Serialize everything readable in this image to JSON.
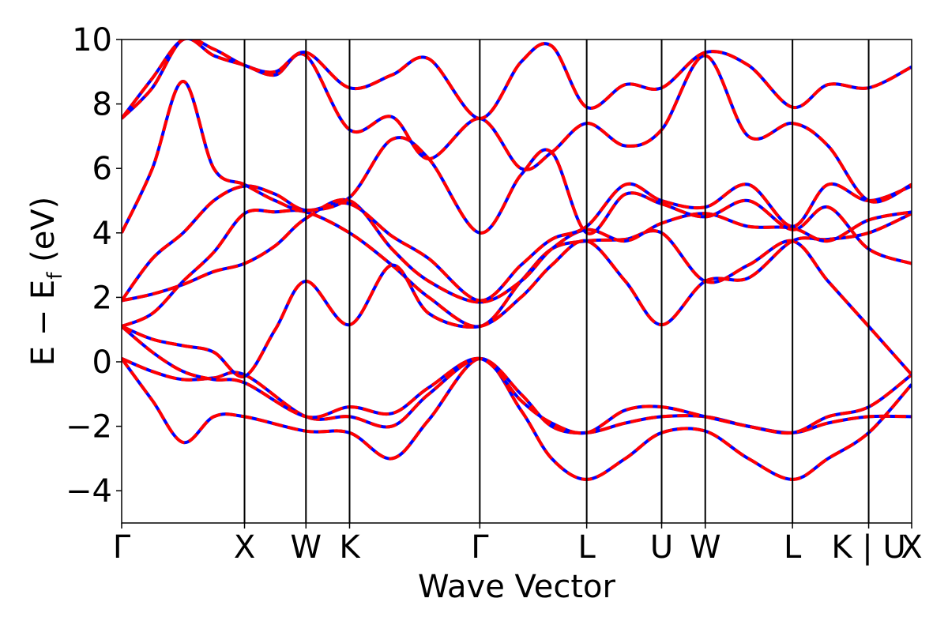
{
  "chart_data": {
    "type": "line",
    "xlabel": "Wave Vector",
    "ylabel_main": "E − E",
    "ylabel_sub": "f",
    "ylabel_unit": " (eV)",
    "ylim": [
      -5,
      10
    ],
    "xlim": [
      0,
      12.86
    ],
    "yticks": [
      -4,
      -2,
      0,
      2,
      4,
      6,
      8,
      10
    ],
    "ytick_labels": [
      "−4",
      "−2",
      "0",
      "2",
      "4",
      "6",
      "8",
      "10"
    ],
    "kpoints": [
      {
        "label": "Γ",
        "x": 0
      },
      {
        "label": "X",
        "x": 2.0
      },
      {
        "label": "W",
        "x": 3.0
      },
      {
        "label": "K",
        "x": 3.71
      },
      {
        "label": "Γ",
        "x": 5.83
      },
      {
        "label": "L",
        "x": 7.57
      },
      {
        "label": "U",
        "x": 8.79
      },
      {
        "label": "W",
        "x": 9.5
      },
      {
        "label": "L",
        "x": 10.92
      },
      {
        "label": "K | U",
        "x": 12.16
      },
      {
        "label": "X",
        "x": 12.86
      }
    ],
    "grid": false,
    "legend": "none",
    "colors": {
      "primary": "#0000ff",
      "overlay": "#ff0000",
      "axis": "#000000"
    },
    "series": [
      {
        "x": [
          0,
          0.5,
          1.0,
          1.5,
          2.0,
          3.0,
          3.71,
          4.4,
          5.0,
          5.83,
          6.5,
          7.0,
          7.57,
          8.2,
          8.79,
          9.5,
          10.2,
          10.92,
          11.5,
          12.16,
          12.86
        ],
        "values": [
          0.1,
          -1.2,
          -2.5,
          -1.7,
          -1.7,
          -2.15,
          -2.2,
          -3.0,
          -1.8,
          0.1,
          -1.5,
          -3.0,
          -3.65,
          -3.0,
          -2.2,
          -2.15,
          -3.0,
          -3.65,
          -3.0,
          -2.2,
          -0.7
        ]
      },
      {
        "x": [
          0,
          0.5,
          1.0,
          1.5,
          2.0,
          3.0,
          3.71,
          4.4,
          5.0,
          5.83,
          6.5,
          7.0,
          7.57,
          8.2,
          8.79,
          9.5,
          10.2,
          10.92,
          11.5,
          12.16,
          12.86
        ],
        "values": [
          0.1,
          -0.3,
          -0.55,
          -0.5,
          -0.4,
          -1.7,
          -1.7,
          -2.0,
          -1.0,
          0.1,
          -1.0,
          -2.0,
          -2.2,
          -1.9,
          -1.7,
          -1.7,
          -2.0,
          -2.2,
          -1.9,
          -1.7,
          -1.7
        ]
      },
      {
        "x": [
          0,
          0.5,
          1.0,
          1.5,
          2.0,
          3.0,
          3.71,
          4.4,
          5.0,
          5.83,
          6.5,
          7.0,
          7.57,
          8.2,
          8.79,
          9.5,
          10.2,
          10.92,
          11.5,
          12.16,
          12.86
        ],
        "values": [
          1.1,
          0.3,
          -0.3,
          -0.55,
          -0.65,
          -1.7,
          -1.4,
          -1.6,
          -0.8,
          0.1,
          -1.2,
          -1.9,
          -2.2,
          -1.5,
          -1.4,
          -1.7,
          -2.0,
          -2.2,
          -1.7,
          -1.4,
          -0.4
        ]
      },
      {
        "x": [
          0,
          0.5,
          1.0,
          1.5,
          2.0,
          2.5,
          3.0,
          3.71,
          4.4,
          5.0,
          5.83,
          6.5,
          7.0,
          7.57,
          8.2,
          8.79,
          9.5,
          10.2,
          10.92,
          11.5,
          12.16,
          12.86
        ],
        "values": [
          1.1,
          1.5,
          2.5,
          3.4,
          4.6,
          4.65,
          4.65,
          4.0,
          3.0,
          2.0,
          1.1,
          2.5,
          3.5,
          3.75,
          3.8,
          4.0,
          2.5,
          3.0,
          3.75,
          2.5,
          1.1,
          -0.4
        ]
      },
      {
        "x": [
          0,
          0.5,
          1.0,
          1.5,
          2.0,
          2.5,
          3.0,
          3.71,
          4.4,
          5.0,
          5.83,
          6.5,
          7.0,
          7.57,
          8.2,
          8.79,
          9.5,
          10.2,
          10.92,
          11.5,
          12.16,
          12.86
        ],
        "values": [
          1.1,
          0.7,
          0.5,
          0.3,
          -0.45,
          1.0,
          2.5,
          1.15,
          3.0,
          1.5,
          1.1,
          2.0,
          3.0,
          3.75,
          2.5,
          1.15,
          2.5,
          2.6,
          3.75,
          3.8,
          4.0,
          4.6
        ]
      },
      {
        "x": [
          0,
          0.5,
          1.0,
          1.5,
          2.0,
          2.5,
          3.0,
          3.71,
          4.4,
          5.0,
          5.83,
          6.5,
          7.0,
          7.57,
          8.2,
          8.79,
          9.5,
          10.2,
          10.92,
          11.5,
          12.16,
          12.86
        ],
        "values": [
          1.9,
          2.1,
          2.4,
          2.8,
          3.05,
          3.6,
          4.45,
          5.0,
          3.5,
          2.5,
          1.85,
          2.5,
          3.5,
          4.1,
          3.75,
          4.3,
          4.6,
          4.2,
          4.15,
          3.75,
          4.4,
          4.65
        ]
      },
      {
        "x": [
          0,
          0.5,
          1.0,
          1.5,
          2.0,
          2.5,
          3.0,
          3.71,
          4.4,
          5.0,
          5.83,
          6.5,
          7.0,
          7.57,
          8.2,
          8.79,
          9.5,
          10.2,
          10.92,
          11.5,
          12.16,
          12.86
        ],
        "values": [
          1.9,
          3.2,
          4.0,
          5.0,
          5.45,
          5.2,
          4.7,
          4.9,
          3.9,
          3.2,
          1.9,
          3.0,
          3.8,
          4.2,
          5.5,
          5.0,
          4.8,
          5.5,
          4.2,
          5.5,
          5.0,
          5.45
        ]
      },
      {
        "x": [
          0,
          0.5,
          1.0,
          1.5,
          2.0,
          2.5,
          3.0,
          3.71,
          4.4,
          5.0,
          5.83,
          6.5,
          7.0,
          7.57,
          8.2,
          8.79,
          9.5,
          10.2,
          10.92,
          11.5,
          12.16,
          12.86
        ],
        "values": [
          4.0,
          6.0,
          8.7,
          6.0,
          5.5,
          5.0,
          4.7,
          5.1,
          6.9,
          6.3,
          4.0,
          5.8,
          6.5,
          4.0,
          5.2,
          4.9,
          4.5,
          5.0,
          4.1,
          4.8,
          3.5,
          3.05
        ]
      },
      {
        "x": [
          0,
          0.5,
          1.0,
          1.5,
          2.0,
          2.5,
          3.0,
          3.71,
          4.4,
          5.0,
          5.83,
          6.5,
          7.0,
          7.57,
          8.2,
          8.79,
          9.5,
          10.2,
          10.92,
          11.5,
          12.16,
          12.86
        ],
        "values": [
          7.55,
          8.5,
          10.0,
          9.5,
          9.2,
          8.9,
          9.5,
          7.2,
          7.6,
          6.3,
          7.55,
          6.0,
          6.5,
          7.4,
          6.7,
          7.2,
          9.5,
          7.0,
          7.4,
          6.7,
          5.0,
          5.5
        ]
      },
      {
        "x": [
          0,
          0.5,
          1.0,
          1.5,
          2.0,
          2.5,
          3.0,
          3.71,
          4.4,
          5.0,
          5.83,
          6.5,
          7.0,
          7.57,
          8.2,
          8.79,
          9.5,
          10.2,
          10.92,
          11.5,
          12.16,
          12.86
        ],
        "values": [
          7.55,
          8.8,
          10.0,
          9.7,
          9.2,
          9.0,
          9.6,
          8.5,
          8.9,
          9.4,
          7.55,
          9.3,
          9.8,
          7.9,
          8.6,
          8.5,
          9.6,
          9.2,
          7.9,
          8.6,
          8.5,
          9.15
        ]
      }
    ]
  }
}
